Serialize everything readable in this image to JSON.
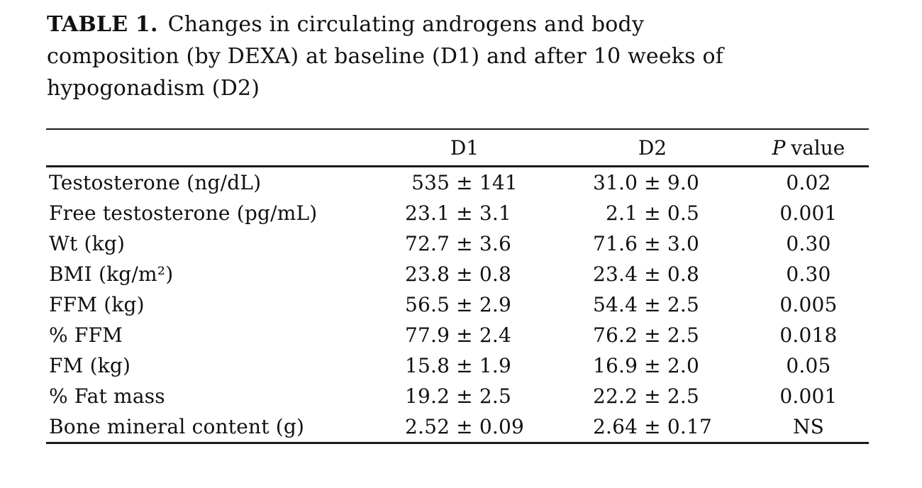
{
  "page": {
    "background_color": "#ffffff",
    "text_color": "#111111",
    "rule_color": "#1a1a1a"
  },
  "caption": {
    "label": "TABLE 1.",
    "line1": "Changes in circulating androgens and body",
    "line2": "composition (by DEXA) at baseline (D1) and after 10 weeks of",
    "line3": "hypogonadism (D2)"
  },
  "table": {
    "plus_minus": "±",
    "header": {
      "d1": "D1",
      "d2": "D2",
      "p_italic": "P",
      "p_rest": "value"
    },
    "rows": [
      {
        "label": "Testosterone (ng/dL)",
        "d1": {
          "v": "535",
          "e": "141"
        },
        "d2": {
          "v": "31.0",
          "e": "9.0"
        },
        "p": "0.02"
      },
      {
        "label": "Free testosterone (pg/mL)",
        "d1": {
          "v": "23.1",
          "e": "3.1"
        },
        "d2": {
          "v": "2.1",
          "e": "0.5"
        },
        "p": "0.001"
      },
      {
        "label": "Wt (kg)",
        "d1": {
          "v": "72.7",
          "e": "3.6"
        },
        "d2": {
          "v": "71.6",
          "e": "3.0"
        },
        "p": "0.30"
      },
      {
        "label": "BMI (kg/m²)",
        "d1": {
          "v": "23.8",
          "e": "0.8"
        },
        "d2": {
          "v": "23.4",
          "e": "0.8"
        },
        "p": "0.30"
      },
      {
        "label": "FFM (kg)",
        "d1": {
          "v": "56.5",
          "e": "2.9"
        },
        "d2": {
          "v": "54.4",
          "e": "2.5"
        },
        "p": "0.005"
      },
      {
        "label": "% FFM",
        "d1": {
          "v": "77.9",
          "e": "2.4"
        },
        "d2": {
          "v": "76.2",
          "e": "2.5"
        },
        "p": "0.018"
      },
      {
        "label": "FM (kg)",
        "d1": {
          "v": "15.8",
          "e": "1.9"
        },
        "d2": {
          "v": "16.9",
          "e": "2.0"
        },
        "p": "0.05"
      },
      {
        "label": "% Fat mass",
        "d1": {
          "v": "19.2",
          "e": "2.5"
        },
        "d2": {
          "v": "22.2",
          "e": "2.5"
        },
        "p": "0.001"
      },
      {
        "label": "Bone mineral content (g)",
        "d1": {
          "v": "2.52",
          "e": "0.09"
        },
        "d2": {
          "v": "2.64",
          "e": "0.17"
        },
        "p": "NS"
      }
    ]
  }
}
